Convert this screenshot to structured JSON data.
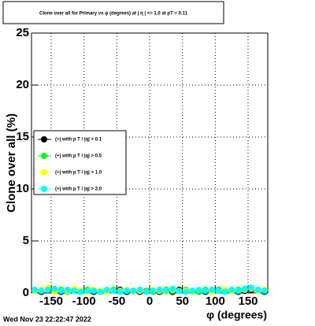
{
  "chart_data": {
    "type": "scatter",
    "title": "Clone  over all for Primary vs φ (degrees) at | η | <= 1.0 at pT > 0.11",
    "x_label": "φ (degrees)",
    "y_label": "Clone  over all (%)",
    "footer": "Wed Nov 23 22:22:47 2022",
    "xlim": [
      -180,
      180
    ],
    "ylim": [
      0,
      25
    ],
    "xticks": [
      -150,
      -100,
      -50,
      0,
      50,
      100,
      150
    ],
    "yticks": [
      0,
      5,
      10,
      15,
      20,
      25
    ],
    "grid": true,
    "legend_position": "middle-left",
    "x": [
      -175,
      -165,
      -155,
      -145,
      -135,
      -125,
      -115,
      -105,
      -95,
      -85,
      -75,
      -65,
      -55,
      -45,
      -35,
      -25,
      -15,
      -5,
      5,
      15,
      25,
      35,
      45,
      55,
      65,
      75,
      85,
      95,
      105,
      115,
      125,
      135,
      145,
      155,
      165,
      175
    ],
    "series": [
      {
        "name": "(+) with p T / |q| > 0.1",
        "color": "#000000",
        "values": [
          0.2,
          0.1,
          0.3,
          0.2,
          0.1,
          0.2,
          0.3,
          0.1,
          0.2,
          0.1,
          0.2,
          0.1,
          0.2,
          0.3,
          0.1,
          0.2,
          0.1,
          0.2,
          0.2,
          0.1,
          0.2,
          0.1,
          0.3,
          0.2,
          0.1,
          0.2,
          0.1,
          0.2,
          0.3,
          0.1,
          0.2,
          0.1,
          0.2,
          0.3,
          0.2,
          0.1
        ]
      },
      {
        "name": "(+) with p T / |q| > 0.5",
        "color": "#00ff00",
        "values": [
          0.3,
          0.2,
          0.4,
          0.2,
          0.3,
          0.1,
          0.3,
          0.2,
          0.3,
          0.2,
          0.1,
          0.2,
          0.3,
          0.2,
          0.2,
          0.1,
          0.3,
          0.2,
          0.1,
          0.2,
          0.3,
          0.2,
          0.2,
          0.3,
          0.2,
          0.1,
          0.3,
          0.2,
          0.3,
          0.2,
          0.2,
          0.3,
          0.4,
          0.5,
          0.3,
          0.2
        ]
      },
      {
        "name": "(+) with p T / |q| > 1.0",
        "color": "#ffff00",
        "values": [
          0.2,
          0.3,
          0.5,
          0.1,
          0.2,
          0.2,
          0.4,
          0.2,
          0.1,
          0.3,
          0.2,
          0.1,
          0.2,
          0.2,
          0.3,
          0.1,
          0.2,
          0.1,
          0.3,
          0.2,
          0.1,
          0.3,
          0.2,
          0.2,
          0.1,
          0.3,
          0.2,
          0.1,
          0.2,
          0.3,
          0.2,
          0.2,
          0.3,
          0.4,
          0.2,
          0.3
        ]
      },
      {
        "name": "(+) with p T / |q| > 2.0",
        "color": "#00ffff",
        "values": [
          0.3,
          0.2,
          0.3,
          0.4,
          0.2,
          0.3,
          0.2,
          0.1,
          0.2,
          0.2,
          0.1,
          0.3,
          0.2,
          0.1,
          0.2,
          0.2,
          0.3,
          0.1,
          0.2,
          0.3,
          0.2,
          0.4,
          0.2,
          0.1,
          0.2,
          0.3,
          0.2,
          0.3,
          0.2,
          0.1,
          0.3,
          0.2,
          0.4,
          0.5,
          0.3,
          0.2
        ]
      }
    ]
  }
}
